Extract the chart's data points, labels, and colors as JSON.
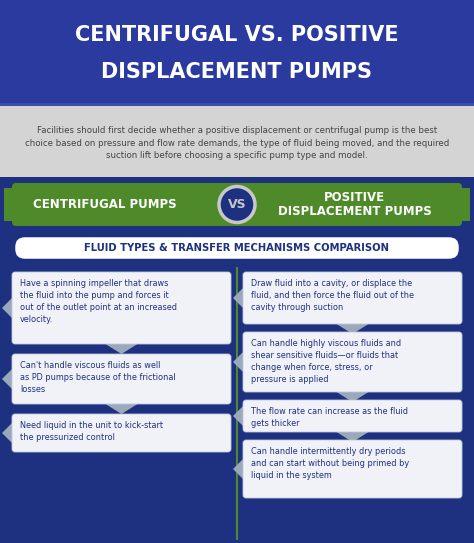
{
  "title_line1": "CENTRIFUGAL VS. POSITIVE",
  "title_line2": "DISPLACEMENT PUMPS",
  "title_bg": "#2a3a9e",
  "title_color": "#ffffff",
  "subtitle": "Facilities should first decide whether a positive displacement or centrifugal pump is the best\nchoice based on pressure and flow rate demands, the type of fluid being moved, and the required\nsuction lift before choosing a specific pump type and model.",
  "subtitle_bg": "#d8d8d8",
  "subtitle_color": "#444444",
  "vs_bar_color": "#4e8a2a",
  "main_bg": "#1e3080",
  "left_label": "CENTRIFUGAL PUMPS",
  "right_label": "POSITIVE\nDISPLACEMENT PUMPS",
  "vs_circle_bg": "#c8c8c8",
  "vs_circle_border": "#888888",
  "vs_text": "VS",
  "section_label": "FLUID TYPES & TRANSFER MECHANISMS COMPARISON",
  "section_label_color": "#1e3080",
  "section_label_bg": "#ffffff",
  "section_label_border": "#1e3080",
  "card_bg": "#f0f2f8",
  "card_text_color": "#1e3080",
  "card_border_color": "#c0c8d8",
  "arrow_color": "#9aa8bc",
  "divider_color": "#4e8a2a",
  "left_bullets": [
    "Have a spinning impeller that draws\nthe fluid into the pump and forces it\nout of the outlet point at an increased\nvelocity.",
    "Can't handle viscous fluids as well\nas PD pumps because of the frictional\nlosses",
    "Need liquid in the unit to kick-start\nthe pressurized control"
  ],
  "right_bullets": [
    "Draw fluid into a cavity, or displace the\nfluid, and then force the fluid out of the\ncavity through suction",
    "Can handle highly viscous fluids and\nshear sensitive fluids—or fluids that\nchange when force, stress, or\npressure is applied",
    "The flow rate can increase as the fluid\ngets thicker",
    "Can handle intermittently dry periods\nand can start without being primed by\nliquid in the system"
  ],
  "fig_w": 4.74,
  "fig_h": 5.43,
  "dpi": 100
}
